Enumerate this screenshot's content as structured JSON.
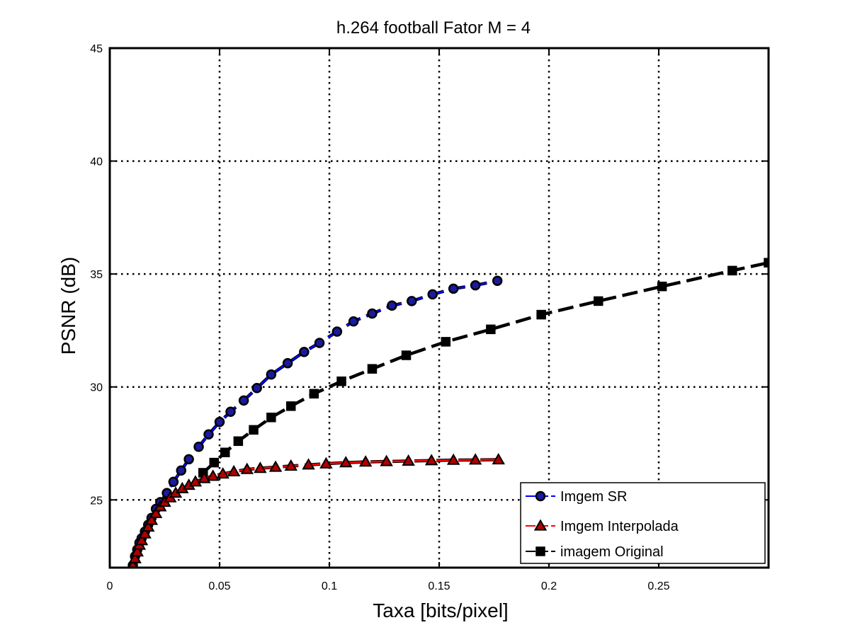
{
  "chart_data": {
    "type": "line",
    "title": "h.264 football Fator M = 4",
    "xlabel": "Taxa [bits/pixel]",
    "ylabel": "PSNR (dB)",
    "xlim": [
      0,
      0.3
    ],
    "ylim": [
      22,
      45
    ],
    "xticks": [
      0,
      0.05,
      0.1,
      0.15,
      0.2,
      0.25
    ],
    "xtick_labels": [
      "0",
      "0.05",
      "0.1",
      "0.15",
      "0.2",
      "0.25"
    ],
    "yticks": [
      25,
      30,
      35,
      40,
      45
    ],
    "ytick_labels": [
      "25",
      "30",
      "35",
      "40",
      "45"
    ],
    "grid": true,
    "legend_position": "bottom-right",
    "series": [
      {
        "name": "Imgem SR",
        "color": "#0000ff",
        "marker": "circle",
        "x": [
          0.0105,
          0.0115,
          0.0125,
          0.0135,
          0.0145,
          0.016,
          0.0175,
          0.019,
          0.021,
          0.023,
          0.026,
          0.029,
          0.0325,
          0.036,
          0.0405,
          0.045,
          0.05,
          0.055,
          0.061,
          0.067,
          0.0735,
          0.081,
          0.0885,
          0.0955,
          0.1035,
          0.111,
          0.1195,
          0.1285,
          0.1375,
          0.147,
          0.1565,
          0.1665,
          0.1765
        ],
        "y": [
          22.1,
          22.5,
          22.8,
          23.1,
          23.3,
          23.6,
          23.9,
          24.2,
          24.6,
          24.9,
          25.3,
          25.8,
          26.3,
          26.8,
          27.35,
          27.9,
          28.45,
          28.9,
          29.4,
          29.95,
          30.55,
          31.05,
          31.55,
          31.95,
          32.45,
          32.9,
          33.25,
          33.6,
          33.8,
          34.1,
          34.35,
          34.5,
          34.7
        ]
      },
      {
        "name": "Imgem Interpolada",
        "color": "#ff0000",
        "marker": "triangle",
        "x": [
          0.0105,
          0.0115,
          0.0125,
          0.0135,
          0.0145,
          0.016,
          0.0175,
          0.019,
          0.021,
          0.023,
          0.025,
          0.0275,
          0.03,
          0.033,
          0.036,
          0.039,
          0.043,
          0.047,
          0.0515,
          0.0565,
          0.0625,
          0.0685,
          0.0755,
          0.0825,
          0.0905,
          0.0985,
          0.1075,
          0.1165,
          0.126,
          0.136,
          0.1465,
          0.1565,
          0.1665,
          0.177
        ],
        "y": [
          22.1,
          22.4,
          22.7,
          23.0,
          23.2,
          23.5,
          23.8,
          24.1,
          24.4,
          24.7,
          24.9,
          25.1,
          25.3,
          25.5,
          25.65,
          25.8,
          25.95,
          26.05,
          26.15,
          26.25,
          26.35,
          26.4,
          26.45,
          26.5,
          26.55,
          26.6,
          26.65,
          26.68,
          26.7,
          26.72,
          26.74,
          26.76,
          26.77,
          26.78
        ]
      },
      {
        "name": "imagem Original",
        "color": "#000000",
        "marker": "square",
        "x": [
          0.0425,
          0.0475,
          0.0525,
          0.0585,
          0.0655,
          0.0735,
          0.0825,
          0.093,
          0.1055,
          0.1195,
          0.135,
          0.153,
          0.1735,
          0.1965,
          0.2225,
          0.2515,
          0.2835,
          0.3
        ],
        "y": [
          26.2,
          26.65,
          27.1,
          27.6,
          28.1,
          28.65,
          29.15,
          29.7,
          30.25,
          30.8,
          31.4,
          32.0,
          32.55,
          33.2,
          33.8,
          34.45,
          35.15,
          35.5
        ]
      }
    ]
  }
}
